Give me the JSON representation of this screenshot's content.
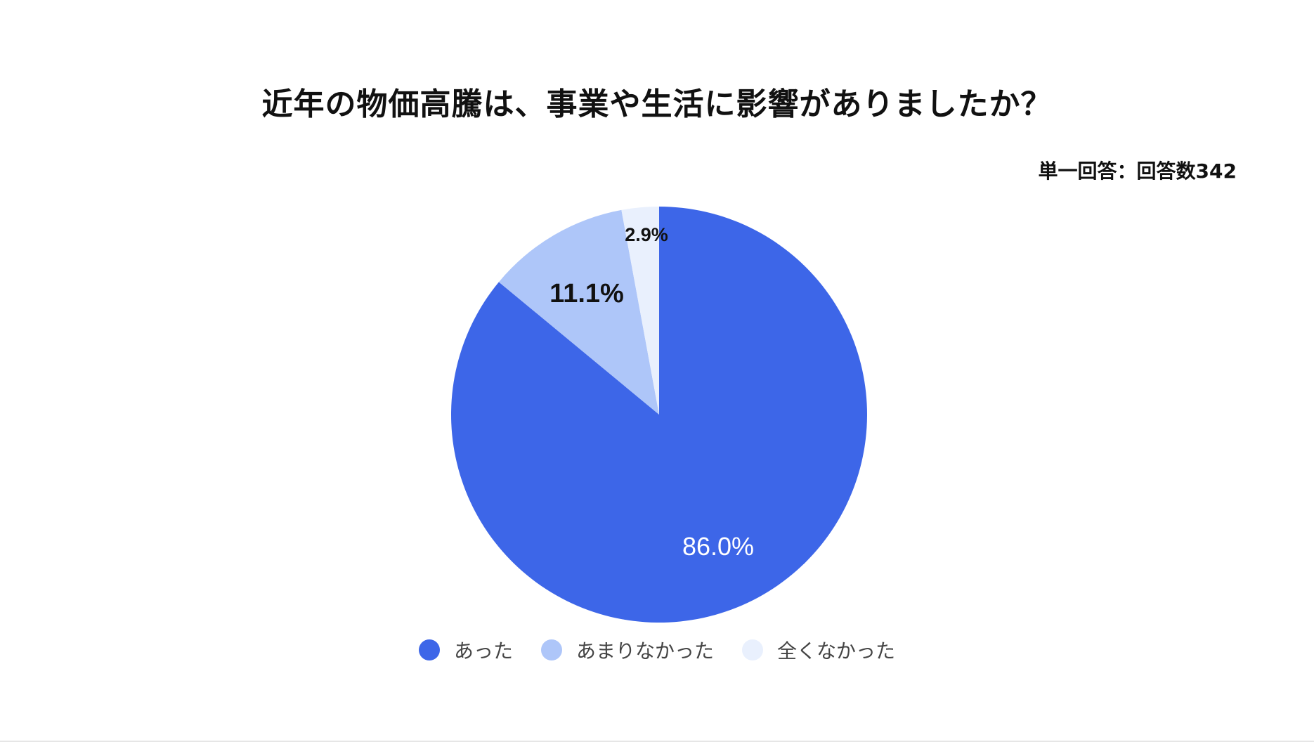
{
  "header": {
    "title": "近年の物価高騰は、事業や生活に影響がありましたか？",
    "subtitle": "単一回答：回答数342"
  },
  "legend": [
    {
      "label": "あった",
      "color": "#3D66E8"
    },
    {
      "label": "あまりなかった",
      "color": "#AEC6F9"
    },
    {
      "label": "全くなかった",
      "color": "#E9F0FD"
    }
  ],
  "slice_labels": {
    "s0": "86.0%",
    "s1": "11.1%",
    "s2": "2.9%"
  },
  "chart_data": {
    "type": "pie",
    "title": "近年の物価高騰は、事業や生活に影響がありましたか？",
    "subtitle": "単一回答：回答数342",
    "categories": [
      "あった",
      "あまりなかった",
      "全くなかった"
    ],
    "values": [
      86.0,
      11.1,
      2.9
    ],
    "unit": "%",
    "colors": [
      "#3D66E8",
      "#AEC6F9",
      "#E9F0FD"
    ],
    "start_angle": "12 o'clock, clockwise",
    "legend_position": "bottom",
    "total_responses": 342
  }
}
